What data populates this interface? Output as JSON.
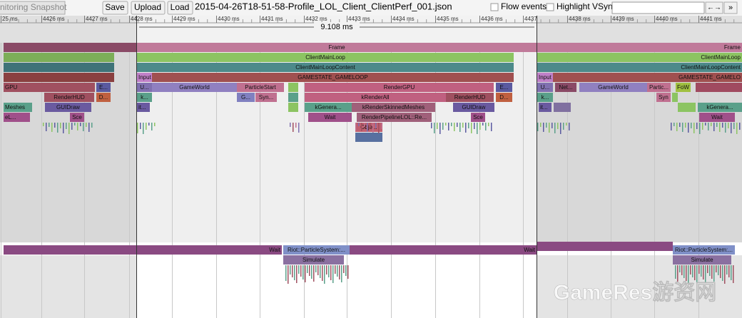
{
  "toolbar": {
    "snapshot_button": "nitoring Snapshot",
    "save": "Save",
    "upload": "Upload",
    "load": "Load",
    "filename": "2015-04-26T18-51-58-Profile_LOL_Client_ClientPerf_001.json",
    "flow_events": "Flow events",
    "highlight_vsync": "Highlight VSync",
    "nav_button": "←→",
    "more_button": "»"
  },
  "ruler": {
    "ticks": [
      "25 ms",
      "4426 ms",
      "4427 ms",
      "4428 ms",
      "4429 ms",
      "4430 ms",
      "4431 ms",
      "4432 ms",
      "4433 ms",
      "4434 ms",
      "4435 ms",
      "4436 ms",
      "4437",
      "4438 ms",
      "4439 ms",
      "4440 ms",
      "4441 ms"
    ],
    "selection": "9.108 ms"
  },
  "main_thread": {
    "slices": [
      "Frame",
      "Frame",
      "ClientMainLoop",
      "ClientMainLoop",
      "ClientMainLoopContent",
      "ClientMainLoopContent",
      "Input",
      "GAMESTATE_GAMELOOP",
      "Input",
      "GAMESTATE_GAMELO",
      "GPU",
      "E...",
      "U...",
      "GameWorld",
      "ParticleStart",
      "RenderGPU",
      "E...",
      "U...",
      "Net...",
      "GameWorld",
      "Partic...",
      "FoW",
      "RenderHUD",
      "D...",
      "k...",
      "G...",
      "Syn...",
      "kRenderAll",
      "RenderHUD",
      "D...",
      "k...",
      "Syn",
      "Meshes",
      "GUIDraw",
      "it...",
      "kGenera...",
      "kRenderSkinnedMeshes",
      "GUIDraw",
      "it...",
      "kGenera...",
      "eL...",
      "Sce",
      "Wait",
      "RenderPipelineLOL::Re...",
      "Sce",
      "Wait",
      "Obje..."
    ]
  },
  "worker_thread": {
    "slices": [
      "Wait",
      "Riot::ParticleSystem:...",
      "Simulate",
      "Wait",
      "Riot::ParticleSystem:...",
      "Simulate"
    ]
  },
  "watermark": "GameRes游资网"
}
